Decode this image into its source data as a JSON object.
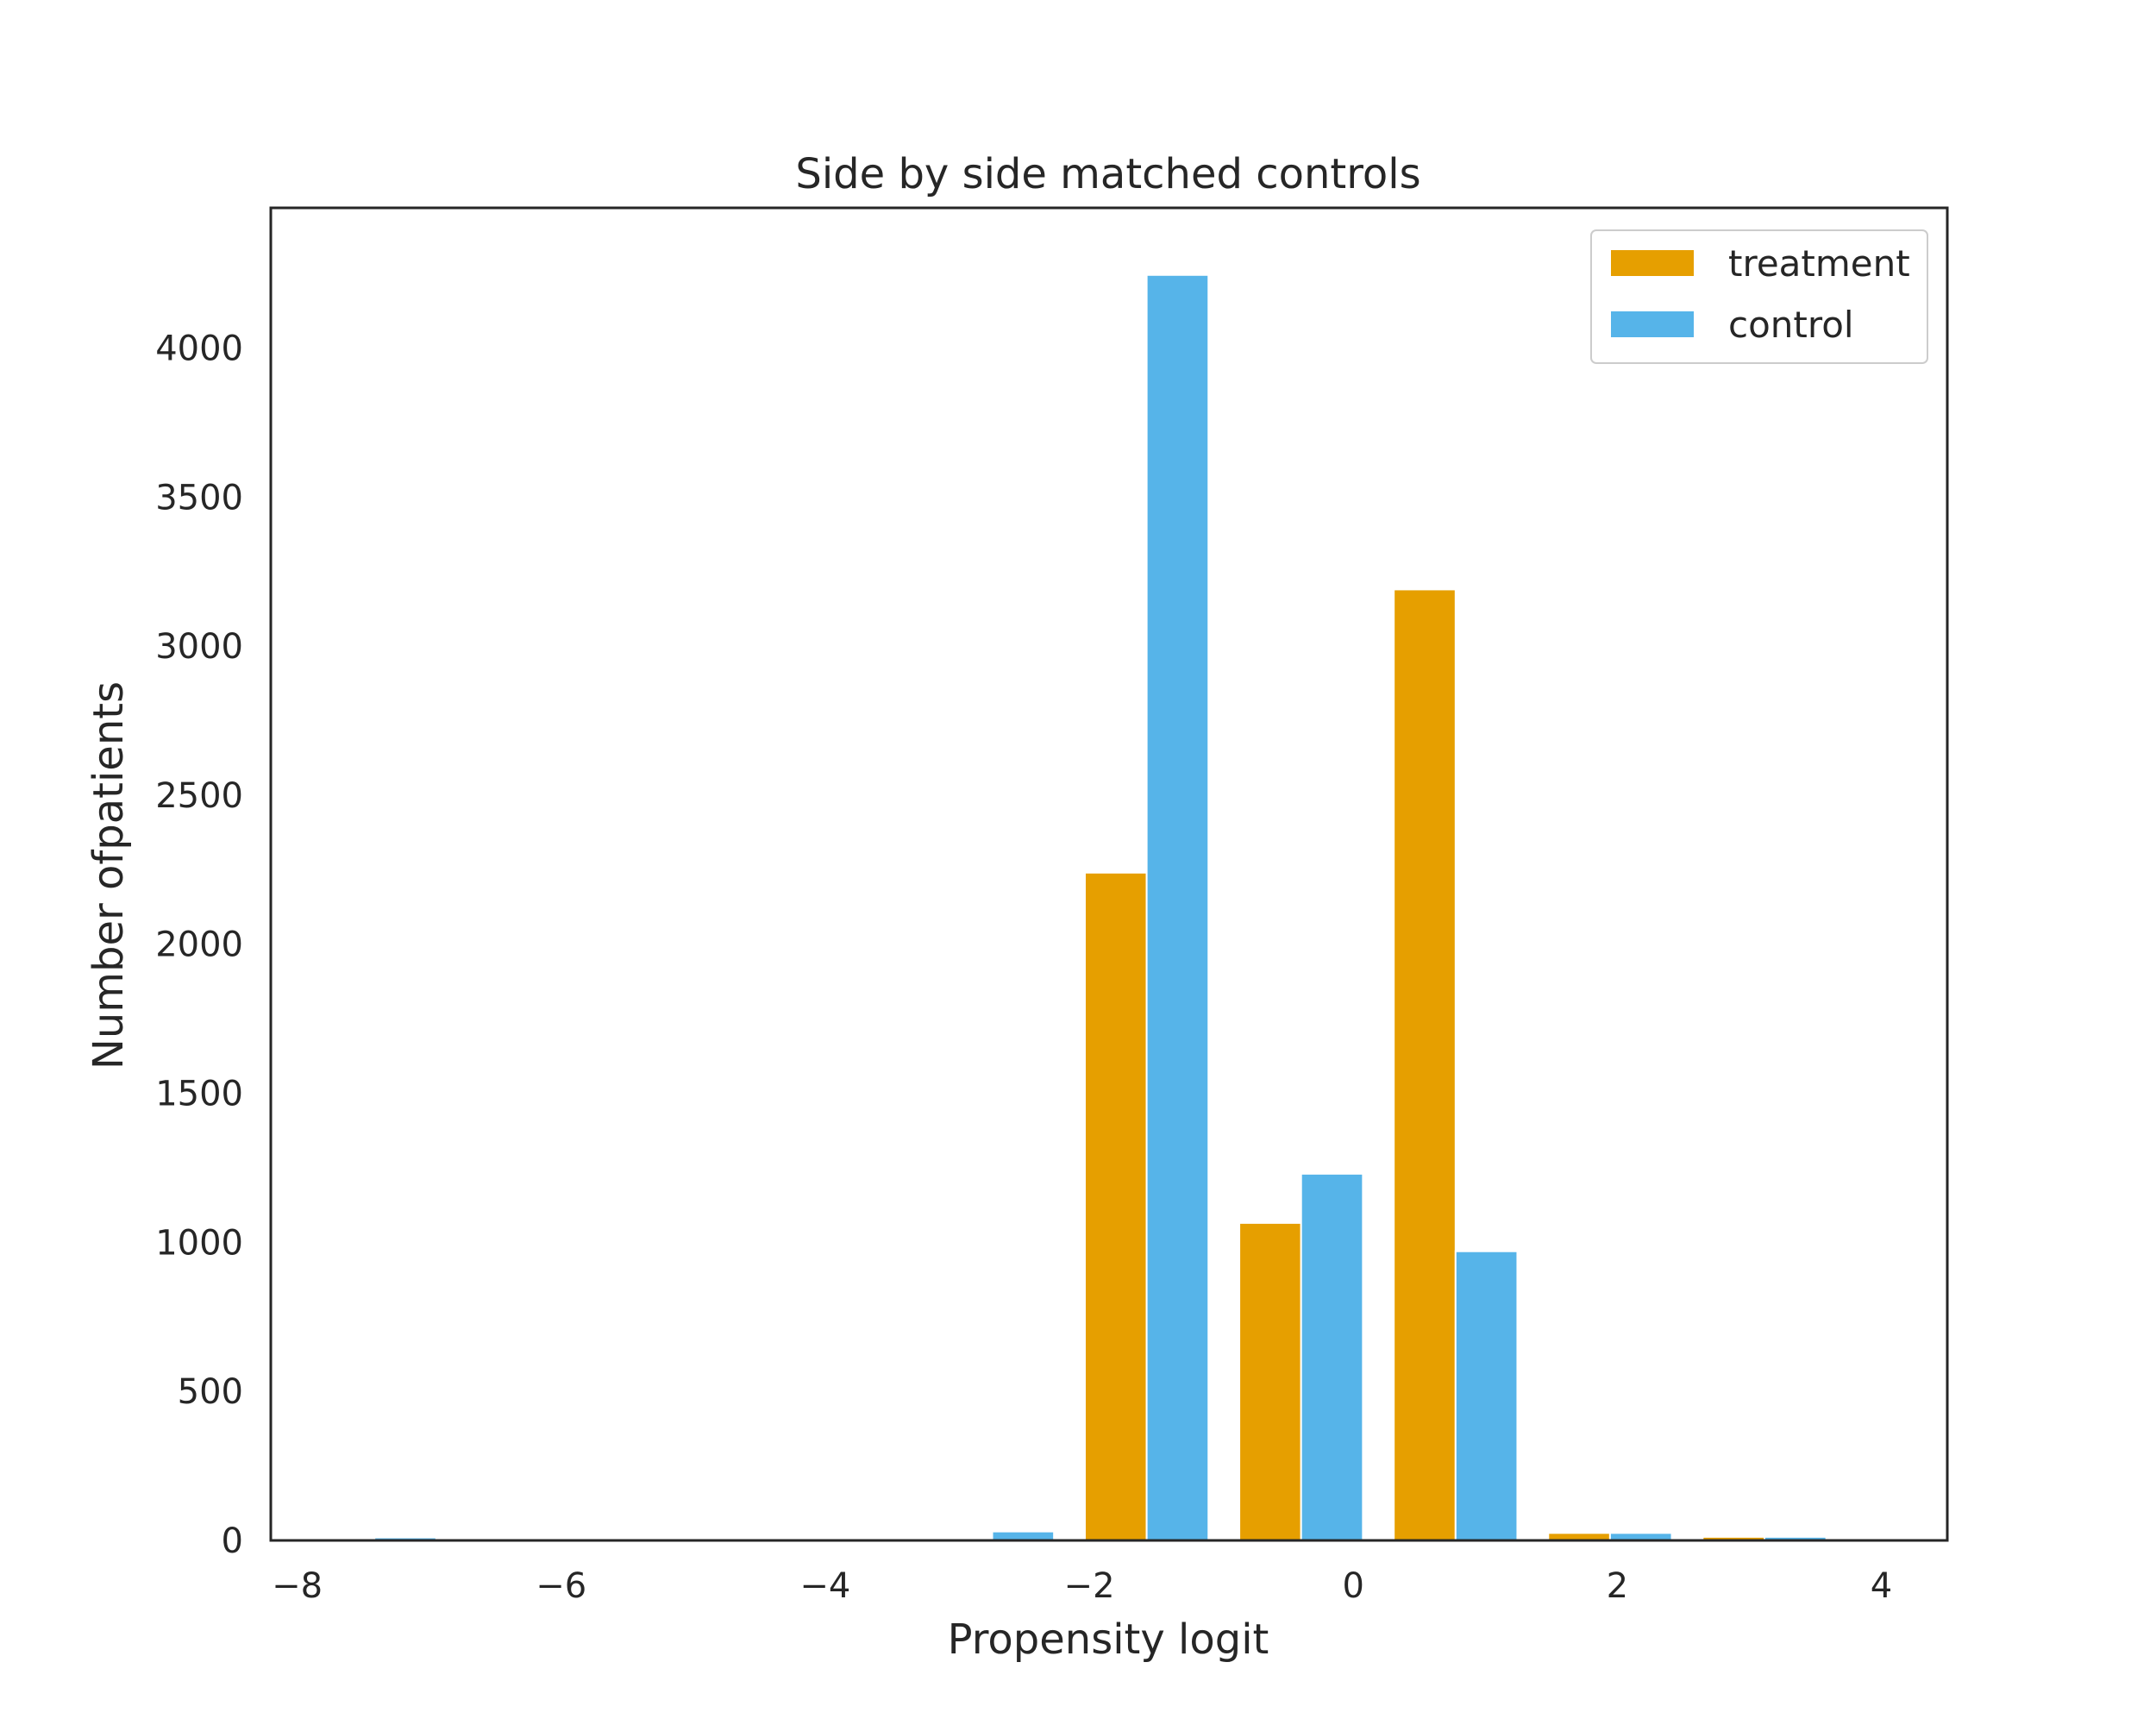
{
  "chart_data": {
    "type": "bar",
    "title": "Side by side matched controls",
    "xlabel": "Propensity logit",
    "ylabel": "Number ofpatients",
    "xlim": [
      -8.2,
      4.5
    ],
    "ylim": [
      0,
      4470
    ],
    "x_ticks": [
      {
        "value": -8,
        "label": "−8"
      },
      {
        "value": -6,
        "label": "−6"
      },
      {
        "value": -4,
        "label": "−4"
      },
      {
        "value": -2,
        "label": "−2"
      },
      {
        "value": 0,
        "label": "0"
      },
      {
        "value": 2,
        "label": "2"
      },
      {
        "value": 4,
        "label": "4"
      }
    ],
    "y_ticks": [
      {
        "value": 0,
        "label": "0"
      },
      {
        "value": 500,
        "label": "500"
      },
      {
        "value": 1000,
        "label": "1000"
      },
      {
        "value": 1500,
        "label": "1500"
      },
      {
        "value": 2000,
        "label": "2000"
      },
      {
        "value": 2500,
        "label": "2500"
      },
      {
        "value": 3000,
        "label": "3000"
      },
      {
        "value": 3500,
        "label": "3500"
      },
      {
        "value": 4000,
        "label": "4000"
      }
    ],
    "grid": false,
    "legend_position": "top-right",
    "bin_edges": [
      -8.0,
      -6.83,
      -5.66,
      -4.49,
      -3.32,
      -2.15,
      -0.98,
      0.19,
      1.36,
      2.53,
      3.7
    ],
    "series": [
      {
        "name": "treatment",
        "color": "#E69F00",
        "values": [
          0,
          0,
          0,
          0,
          0,
          2240,
          1065,
          3190,
          25,
          12
        ]
      },
      {
        "name": "control",
        "color": "#56B4E9",
        "values": [
          10,
          0,
          0,
          0,
          30,
          4245,
          1230,
          970,
          25,
          12
        ]
      }
    ]
  }
}
